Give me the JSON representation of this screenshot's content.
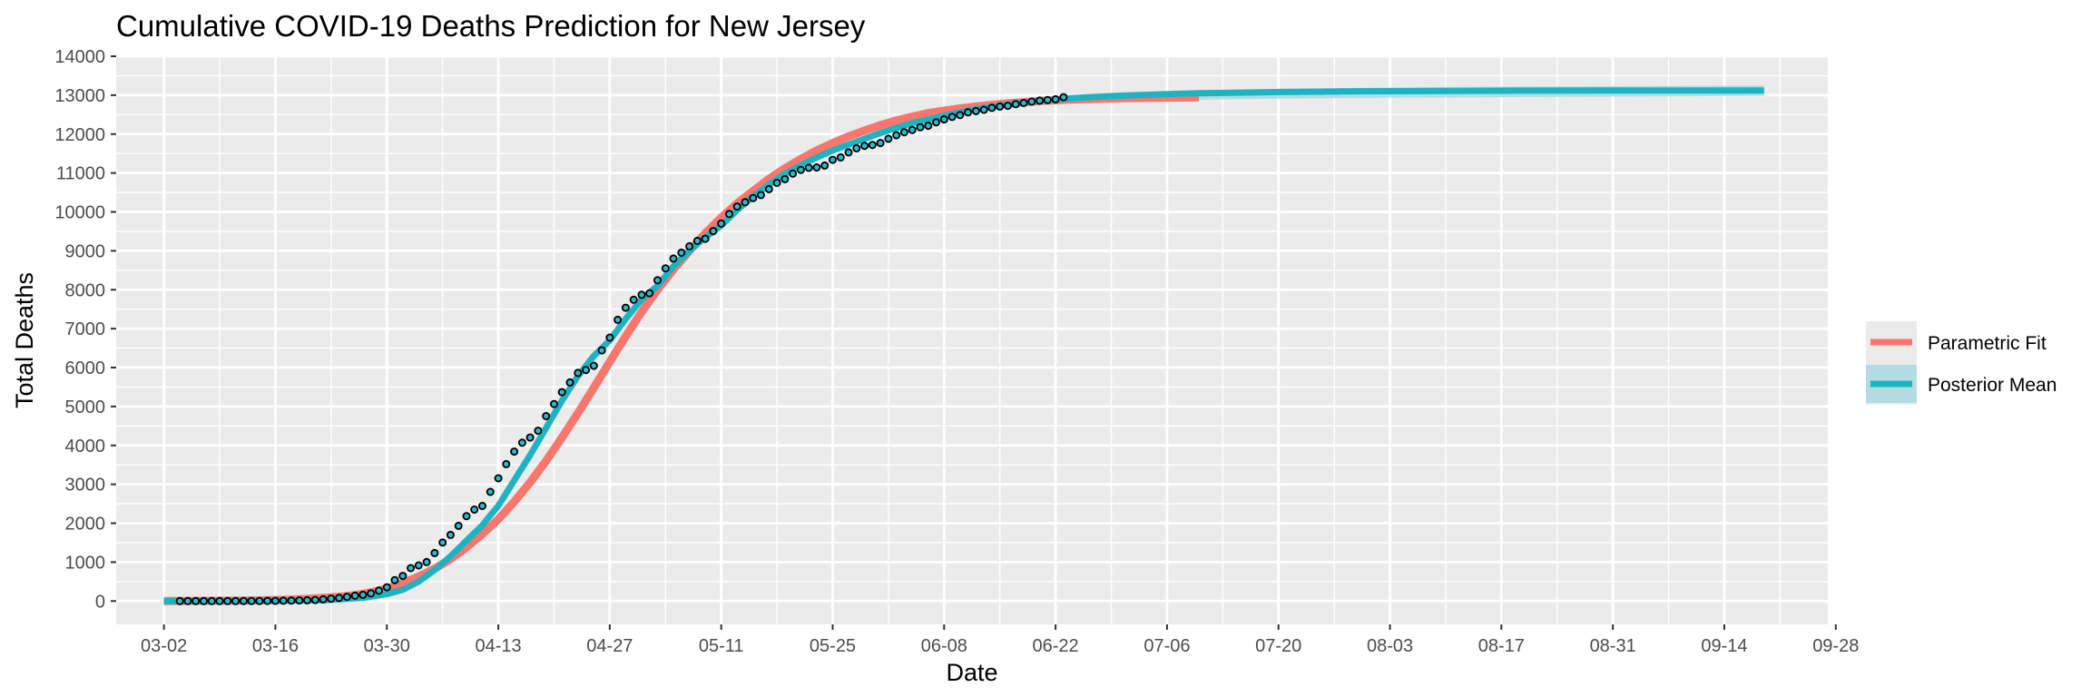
{
  "chart_data": {
    "type": "line",
    "title": "Cumulative COVID-19 Deaths Prediction for New Jersey",
    "xlabel": "Date",
    "ylabel": "Total Deaths",
    "x_range_days": [
      -6,
      209
    ],
    "x_ticks": [
      {
        "day": 0,
        "label": "03-02"
      },
      {
        "day": 14,
        "label": "03-16"
      },
      {
        "day": 28,
        "label": "03-30"
      },
      {
        "day": 42,
        "label": "04-13"
      },
      {
        "day": 56,
        "label": "04-27"
      },
      {
        "day": 70,
        "label": "05-11"
      },
      {
        "day": 84,
        "label": "05-25"
      },
      {
        "day": 98,
        "label": "06-08"
      },
      {
        "day": 112,
        "label": "06-22"
      },
      {
        "day": 126,
        "label": "07-06"
      },
      {
        "day": 140,
        "label": "07-20"
      },
      {
        "day": 154,
        "label": "08-03"
      },
      {
        "day": 168,
        "label": "08-17"
      },
      {
        "day": 182,
        "label": "08-31"
      },
      {
        "day": 196,
        "label": "09-14"
      },
      {
        "day": 210,
        "label": "09-28"
      }
    ],
    "ylim": [
      -600,
      14000
    ],
    "y_ticks": [
      0,
      1000,
      2000,
      3000,
      4000,
      5000,
      6000,
      7000,
      8000,
      9000,
      10000,
      11000,
      12000,
      13000,
      14000
    ],
    "grid": true,
    "legend_position": "right",
    "colors": {
      "parametric_fit": "#F8766D",
      "posterior_mean": "#1FB3C2",
      "credible_band": "#A9D9E1",
      "observed_fill": "#2FB9C8",
      "panel_background": "#EBEBEB",
      "grid": "#FFFFFF"
    },
    "series": [
      {
        "name": "Parametric Fit",
        "x_days": [
          0,
          10,
          15,
          18,
          20,
          22,
          24,
          26,
          28,
          30,
          32,
          34,
          36,
          38,
          40,
          42,
          44,
          46,
          48,
          50,
          52,
          54,
          56,
          58,
          60,
          62,
          64,
          66,
          68,
          70,
          72,
          74,
          76,
          78,
          80,
          82,
          84,
          86,
          88,
          90,
          92,
          94,
          96,
          98,
          100,
          102,
          104,
          106,
          108,
          110,
          112,
          114,
          116,
          118,
          120,
          125,
          130
        ],
        "values": [
          0,
          10,
          30,
          55,
          80,
          110,
          150,
          220,
          320,
          460,
          630,
          830,
          1080,
          1380,
          1720,
          2100,
          2550,
          3050,
          3600,
          4200,
          4830,
          5480,
          6150,
          6800,
          7430,
          8000,
          8520,
          9000,
          9450,
          9850,
          10220,
          10540,
          10850,
          11120,
          11360,
          11580,
          11770,
          11940,
          12090,
          12230,
          12350,
          12450,
          12540,
          12600,
          12660,
          12710,
          12750,
          12790,
          12820,
          12850,
          12870,
          12890,
          12900,
          12910,
          12920,
          12935,
          12945
        ]
      },
      {
        "name": "Posterior Mean",
        "x_days": [
          0,
          10,
          20,
          25,
          28,
          30,
          32,
          34,
          36,
          38,
          40,
          42,
          44,
          46,
          48,
          50,
          52,
          54,
          56,
          58,
          60,
          62,
          64,
          66,
          68,
          70,
          72,
          74,
          76,
          78,
          80,
          82,
          84,
          86,
          88,
          90,
          92,
          94,
          96,
          98,
          100,
          102,
          104,
          106,
          108,
          110,
          112,
          114,
          116,
          118,
          120,
          125,
          130,
          135,
          140,
          150,
          160,
          170,
          180,
          190,
          201
        ],
        "values": [
          0,
          0,
          20,
          80,
          180,
          290,
          500,
          800,
          1150,
          1550,
          1950,
          2450,
          3100,
          3750,
          4450,
          5150,
          5780,
          6300,
          6700,
          7250,
          7750,
          8100,
          8600,
          9000,
          9350,
          9650,
          10050,
          10400,
          10700,
          10980,
          11200,
          11400,
          11580,
          11730,
          11880,
          12030,
          12160,
          12280,
          12380,
          12470,
          12560,
          12640,
          12700,
          12760,
          12810,
          12850,
          12890,
          12920,
          12945,
          12965,
          12985,
          13020,
          13050,
          13065,
          13080,
          13100,
          13110,
          13115,
          13120,
          13120,
          13120
        ]
      }
    ],
    "band_posterior": {
      "x_days": [
        110,
        113,
        116,
        120,
        125,
        130,
        140,
        150,
        170,
        190,
        201
      ],
      "lower": [
        12830,
        12840,
        12850,
        12850,
        12860,
        12880,
        12910,
        12930,
        12950,
        12970,
        12980
      ],
      "upper": [
        12870,
        12900,
        12950,
        13000,
        13050,
        13100,
        13150,
        13190,
        13220,
        13240,
        13250
      ]
    },
    "observed": {
      "x_days": [
        2,
        3,
        4,
        5,
        6,
        7,
        8,
        9,
        10,
        11,
        12,
        13,
        14,
        15,
        16,
        17,
        18,
        19,
        20,
        21,
        22,
        23,
        24,
        25,
        26,
        27,
        28,
        29,
        30,
        31,
        32,
        33,
        34,
        35,
        36,
        37,
        38,
        39,
        40,
        41,
        42,
        43,
        44,
        45,
        46,
        47,
        48,
        49,
        50,
        51,
        52,
        53,
        54,
        55,
        56,
        57,
        58,
        59,
        60,
        61,
        62,
        63,
        64,
        65,
        66,
        67,
        68,
        69,
        70,
        71,
        72,
        73,
        74,
        75,
        76,
        77,
        78,
        79,
        80,
        81,
        82,
        83,
        84,
        85,
        86,
        87,
        88,
        89,
        90,
        91,
        92,
        93,
        94,
        95,
        96,
        97,
        98,
        99,
        100,
        101,
        102,
        103,
        104,
        105,
        106,
        107,
        108,
        109,
        110,
        111,
        112,
        113
      ],
      "values": [
        0,
        0,
        0,
        0,
        0,
        0,
        0,
        0,
        1,
        1,
        2,
        3,
        5,
        9,
        11,
        16,
        20,
        27,
        44,
        62,
        81,
        108,
        140,
        161,
        198,
        267,
        355,
        537,
        646,
        846,
        917,
        1003,
        1232,
        1504,
        1700,
        1932,
        2183,
        2350,
        2443,
        2805,
        3156,
        3518,
        3840,
        4070,
        4202,
        4377,
        4753,
        5063,
        5368,
        5617,
        5863,
        5938,
        6044,
        6442,
        6770,
        7228,
        7538,
        7742,
        7871,
        7910,
        8244,
        8549,
        8801,
        8952,
        9116,
        9255,
        9310,
        9508,
        9702,
        9946,
        10138,
        10249,
        10356,
        10435,
        10586,
        10747,
        10843,
        10985,
        11081,
        11134,
        11144,
        11191,
        11339,
        11401,
        11531,
        11634,
        11698,
        11721,
        11770,
        11880,
        11970,
        12049,
        12106,
        12176,
        12214,
        12303,
        12377,
        12443,
        12489,
        12559,
        12592,
        12625,
        12676,
        12708,
        12727,
        12769,
        12800,
        12835,
        12859,
        12877,
        12895,
        12949
      ]
    }
  },
  "legend": {
    "items": [
      {
        "label": "Parametric Fit",
        "color": "#F8766D"
      },
      {
        "label": "Posterior Mean",
        "color": "#1FB3C2"
      }
    ]
  }
}
